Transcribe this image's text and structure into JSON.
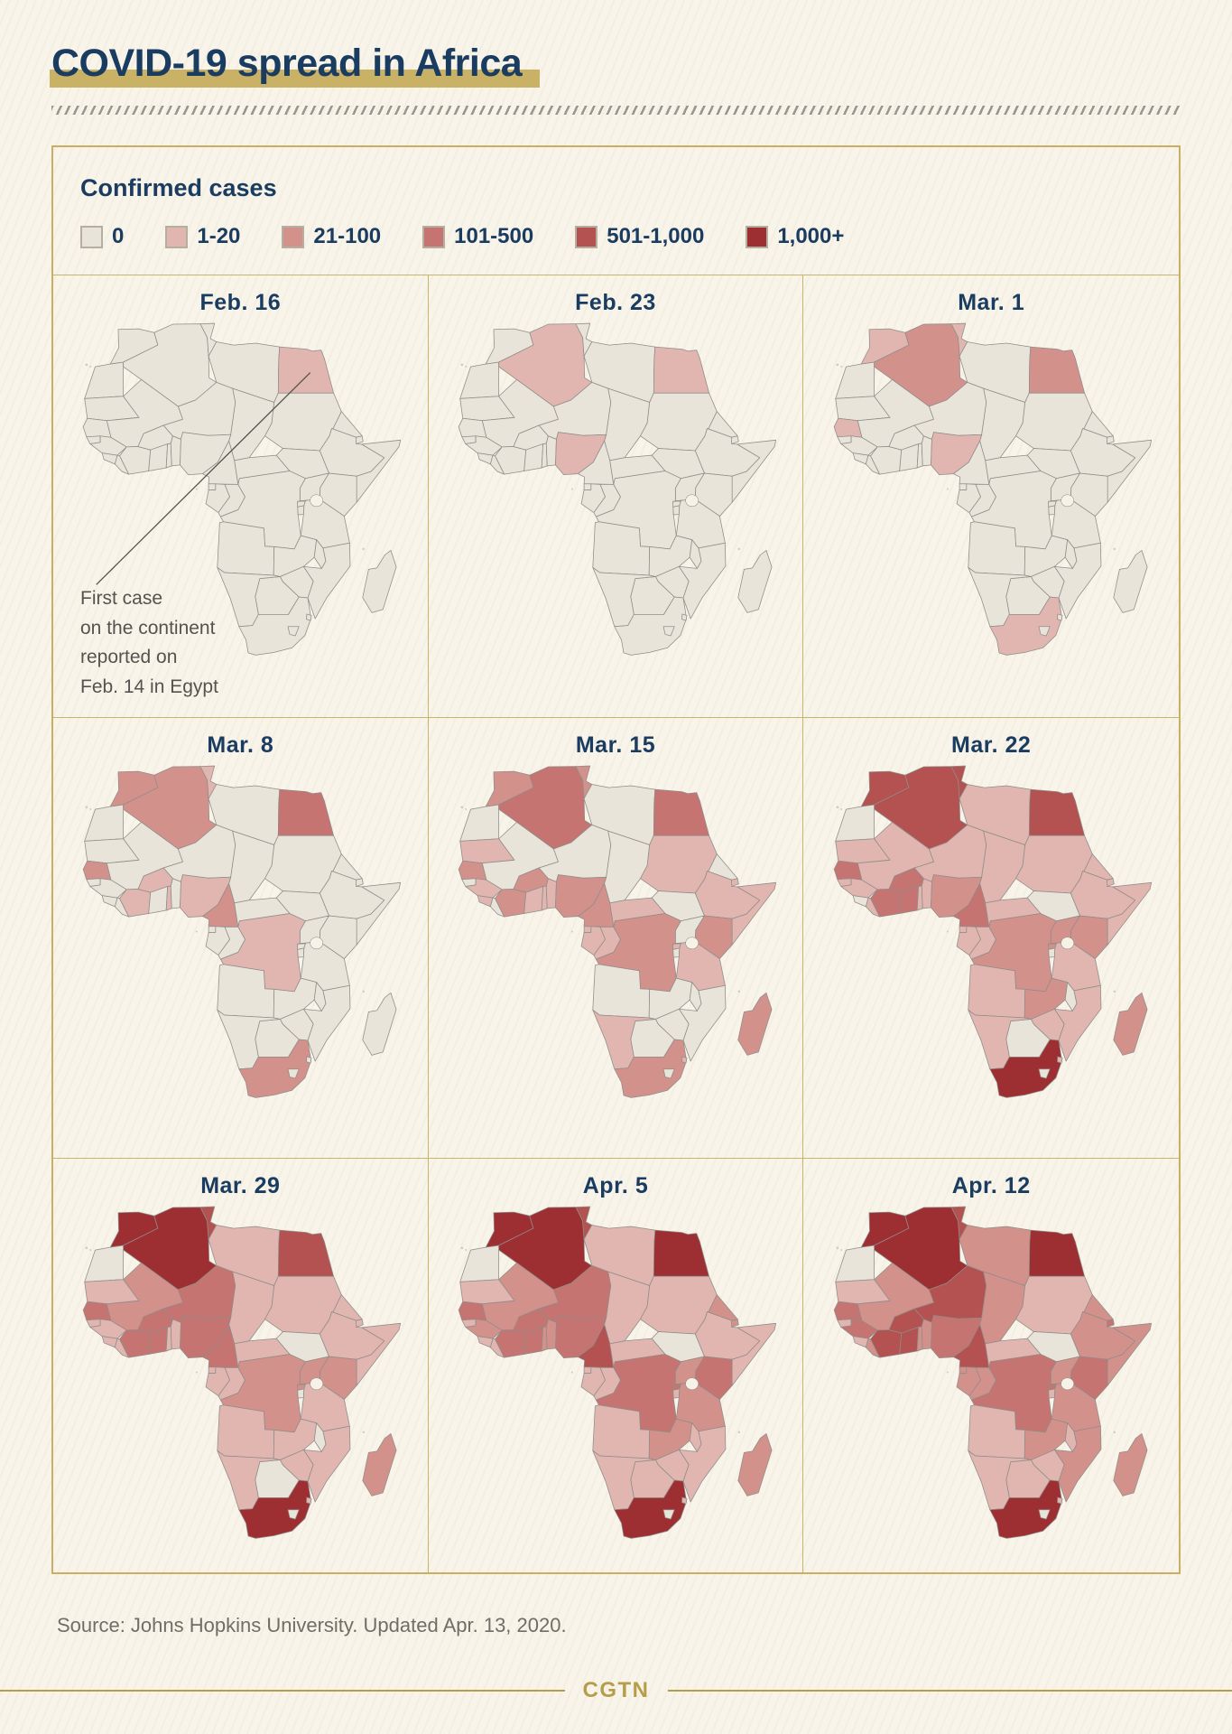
{
  "title": "COVID-19 spread in Africa",
  "legend": {
    "heading": "Confirmed cases",
    "items": [
      {
        "label": "0",
        "color": "#e8e4da"
      },
      {
        "label": "1-20",
        "color": "#e1b5b0"
      },
      {
        "label": "21-100",
        "color": "#d3918c"
      },
      {
        "label": "101-500",
        "color": "#c57471"
      },
      {
        "label": "501-1,000",
        "color": "#b35250"
      },
      {
        "label": "1,000+",
        "color": "#9d2f33"
      }
    ]
  },
  "annotation": {
    "text": "First case\non the continent\nreported on\nFeb. 14 in Egypt"
  },
  "source": "Source: Johns Hopkins University. Updated Apr. 13, 2020.",
  "footer": {
    "brand": "CGTN"
  },
  "chart_data": {
    "type": "heatmap",
    "subtype": "choropleth-small-multiples",
    "title": "COVID-19 spread in Africa",
    "metric": "Confirmed COVID-19 cases per country",
    "bins": [
      "0",
      "1-20",
      "21-100",
      "101-500",
      "501-1,000",
      "1,000+"
    ],
    "bin_colors": [
      "#e8e4da",
      "#e1b5b0",
      "#d3918c",
      "#c57471",
      "#b35250",
      "#9d2f33"
    ],
    "annotation": "First case on the continent reported on Feb. 14 in Egypt",
    "source": "Johns Hopkins University",
    "updated": "Apr. 13, 2020",
    "maps": [
      {
        "date": "Feb. 16",
        "bin_index_by_country": {
          "EGY": 1
        }
      },
      {
        "date": "Feb. 23",
        "bin_index_by_country": {
          "EGY": 1,
          "DZA": 1,
          "NGA": 1
        }
      },
      {
        "date": "Mar. 1",
        "bin_index_by_country": {
          "EGY": 2,
          "DZA": 2,
          "TUN": 1,
          "MAR": 1,
          "NGA": 1,
          "SEN": 1,
          "ZAF": 1
        }
      },
      {
        "date": "Mar. 8",
        "bin_index_by_country": {
          "EGY": 3,
          "DZA": 2,
          "TUN": 1,
          "MAR": 2,
          "SEN": 2,
          "NGA": 1,
          "CMR": 2,
          "ZAF": 2,
          "TGO": 1,
          "COD": 1,
          "CIV": 1,
          "BFA": 1
        }
      },
      {
        "date": "Mar. 15",
        "bin_index_by_country": {
          "EGY": 3,
          "DZA": 3,
          "TUN": 2,
          "MAR": 2,
          "MRT": 1,
          "SEN": 2,
          "GIN": 1,
          "SLE": 1,
          "CIV": 2,
          "GHA": 1,
          "BFA": 2,
          "TGO": 1,
          "BEN": 1,
          "NGA": 2,
          "CMR": 2,
          "GNQ": 1,
          "GAB": 1,
          "COG": 1,
          "CAF": 1,
          "COD": 2,
          "SDN": 1,
          "ETH": 1,
          "DJI": 1,
          "SOM": 1,
          "KEN": 2,
          "TZA": 1,
          "RWA": 1,
          "NAM": 1,
          "SWZ": 1,
          "ZAF": 2,
          "MDG": 2
        }
      },
      {
        "date": "Mar. 22",
        "bin_index_by_country": {
          "MAR": 4,
          "DZA": 4,
          "TUN": 4,
          "LBY": 1,
          "EGY": 4,
          "MRT": 1,
          "MLI": 1,
          "SEN": 3,
          "GNB": 1,
          "GIN": 1,
          "LBR": 1,
          "CIV": 3,
          "GHA": 3,
          "BFA": 3,
          "TGO": 1,
          "BEN": 1,
          "NER": 1,
          "NGA": 2,
          "TCD": 1,
          "SDN": 1,
          "ERI": 1,
          "DJI": 1,
          "ETH": 1,
          "SOM": 1,
          "KEN": 2,
          "UGA": 2,
          "RWA": 2,
          "TZA": 1,
          "CMR": 3,
          "CAF": 1,
          "GNQ": 1,
          "GAB": 1,
          "COG": 1,
          "COD": 2,
          "AGO": 1,
          "ZMB": 2,
          "MOZ": 1,
          "ZWE": 1,
          "NAM": 1,
          "ZAF": 5,
          "SWZ": 1,
          "MDG": 2
        }
      },
      {
        "date": "Mar. 29",
        "bin_index_by_country": {
          "MAR": 5,
          "DZA": 5,
          "TUN": 4,
          "LBY": 1,
          "EGY": 4,
          "MRT": 1,
          "MLI": 2,
          "SEN": 3,
          "GNB": 1,
          "GIN": 1,
          "SLE": 1,
          "LBR": 1,
          "CIV": 3,
          "GHA": 3,
          "BFA": 3,
          "TGO": 1,
          "BEN": 1,
          "NER": 3,
          "NGA": 3,
          "TCD": 1,
          "SDN": 1,
          "ERI": 1,
          "DJI": 1,
          "ETH": 1,
          "SOM": 1,
          "KEN": 2,
          "UGA": 2,
          "RWA": 2,
          "TZA": 1,
          "CMR": 3,
          "CAF": 1,
          "GNQ": 1,
          "GAB": 1,
          "COG": 1,
          "COD": 2,
          "AGO": 1,
          "ZMB": 1,
          "MOZ": 1,
          "ZWE": 1,
          "NAM": 1,
          "ZAF": 5,
          "SWZ": 1,
          "MDG": 2
        }
      },
      {
        "date": "Apr. 5",
        "bin_index_by_country": {
          "MAR": 5,
          "DZA": 5,
          "TUN": 4,
          "LBY": 1,
          "EGY": 5,
          "MRT": 1,
          "MLI": 2,
          "SEN": 3,
          "GNB": 1,
          "GIN": 2,
          "SLE": 1,
          "LBR": 1,
          "CIV": 3,
          "GHA": 3,
          "BFA": 3,
          "TGO": 2,
          "BEN": 2,
          "NER": 3,
          "NGA": 3,
          "TCD": 1,
          "SDN": 1,
          "ERI": 2,
          "DJI": 2,
          "ETH": 1,
          "SOM": 1,
          "KEN": 3,
          "UGA": 2,
          "RWA": 3,
          "BDI": 1,
          "TZA": 2,
          "CMR": 4,
          "CAF": 1,
          "GNQ": 1,
          "GAB": 1,
          "COG": 1,
          "COD": 3,
          "AGO": 1,
          "ZMB": 2,
          "MWI": 1,
          "MOZ": 1,
          "ZWE": 1,
          "NAM": 1,
          "BWA": 1,
          "ZAF": 5,
          "SWZ": 1,
          "MDG": 2
        }
      },
      {
        "date": "Apr. 12",
        "bin_index_by_country": {
          "MAR": 5,
          "DZA": 5,
          "TUN": 4,
          "LBY": 2,
          "EGY": 5,
          "MRT": 1,
          "MLI": 2,
          "SEN": 3,
          "GNB": 1,
          "GIN": 3,
          "SLE": 1,
          "LBR": 2,
          "CIV": 4,
          "GHA": 4,
          "BFA": 4,
          "TGO": 2,
          "BEN": 2,
          "NER": 4,
          "NGA": 3,
          "TCD": 2,
          "SDN": 1,
          "ERI": 2,
          "DJI": 3,
          "ETH": 2,
          "SOM": 2,
          "KEN": 3,
          "UGA": 2,
          "RWA": 3,
          "BDI": 1,
          "TZA": 2,
          "CMR": 4,
          "CAF": 1,
          "GNQ": 2,
          "GAB": 2,
          "COG": 2,
          "COD": 3,
          "AGO": 1,
          "ZMB": 2,
          "MWI": 1,
          "MOZ": 2,
          "ZWE": 1,
          "NAM": 1,
          "BWA": 1,
          "ZAF": 5,
          "SWZ": 1,
          "MDG": 2
        }
      }
    ]
  }
}
